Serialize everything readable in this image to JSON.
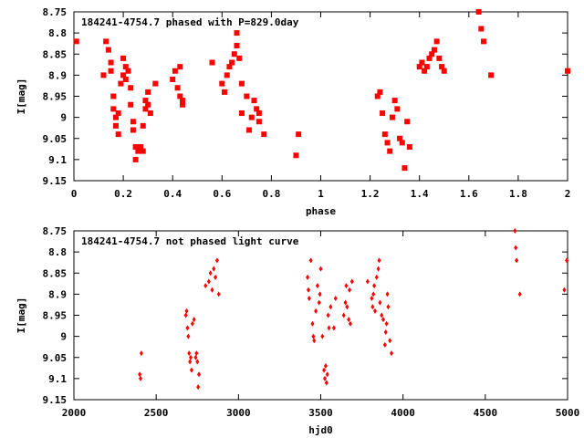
{
  "chart_data": [
    {
      "type": "scatter",
      "title": "184241-4754.7 phased with P=829.0day",
      "xlabel": "phase",
      "ylabel": "I[mag]",
      "xlim": [
        0,
        2
      ],
      "ylim": [
        8.75,
        9.15
      ],
      "y_inverted": true,
      "x_ticks": [
        "0",
        "0.2",
        "0.4",
        "0.6",
        "0.8",
        "1",
        "1.2",
        "1.4",
        "1.6",
        "1.8",
        "2"
      ],
      "y_ticks": [
        "8.75",
        "8.8",
        "8.85",
        "8.9",
        "8.95",
        "9",
        "9.05",
        "9.1",
        "9.15"
      ],
      "grid": false,
      "marker_color": "#ff0000",
      "points": [
        [
          0.01,
          8.82
        ],
        [
          0.12,
          8.9
        ],
        [
          0.13,
          8.82
        ],
        [
          0.14,
          8.84
        ],
        [
          0.15,
          8.87
        ],
        [
          0.15,
          8.89
        ],
        [
          0.16,
          8.95
        ],
        [
          0.16,
          8.98
        ],
        [
          0.17,
          9.0
        ],
        [
          0.17,
          9.02
        ],
        [
          0.18,
          9.04
        ],
        [
          0.18,
          8.99
        ],
        [
          0.19,
          8.92
        ],
        [
          0.2,
          8.9
        ],
        [
          0.2,
          8.86
        ],
        [
          0.21,
          8.88
        ],
        [
          0.21,
          8.91
        ],
        [
          0.22,
          8.89
        ],
        [
          0.23,
          8.93
        ],
        [
          0.23,
          8.97
        ],
        [
          0.24,
          9.01
        ],
        [
          0.24,
          9.03
        ],
        [
          0.25,
          9.07
        ],
        [
          0.25,
          9.1
        ],
        [
          0.26,
          9.08
        ],
        [
          0.27,
          9.07
        ],
        [
          0.28,
          9.08
        ],
        [
          0.28,
          9.02
        ],
        [
          0.29,
          8.98
        ],
        [
          0.29,
          8.96
        ],
        [
          0.3,
          8.94
        ],
        [
          0.3,
          8.97
        ],
        [
          0.31,
          8.99
        ],
        [
          0.33,
          8.92
        ],
        [
          0.4,
          8.91
        ],
        [
          0.41,
          8.89
        ],
        [
          0.42,
          8.93
        ],
        [
          0.43,
          8.95
        ],
        [
          0.43,
          8.88
        ],
        [
          0.44,
          8.97
        ],
        [
          0.44,
          8.96
        ],
        [
          0.56,
          8.87
        ],
        [
          0.6,
          8.92
        ],
        [
          0.61,
          8.94
        ],
        [
          0.62,
          8.9
        ],
        [
          0.63,
          8.88
        ],
        [
          0.64,
          8.87
        ],
        [
          0.65,
          8.85
        ],
        [
          0.66,
          8.83
        ],
        [
          0.66,
          8.8
        ],
        [
          0.67,
          8.86
        ],
        [
          0.68,
          8.92
        ],
        [
          0.68,
          8.99
        ],
        [
          0.7,
          8.95
        ],
        [
          0.71,
          9.03
        ],
        [
          0.72,
          9.0
        ],
        [
          0.73,
          8.96
        ],
        [
          0.74,
          8.98
        ],
        [
          0.75,
          9.01
        ],
        [
          0.75,
          8.99
        ],
        [
          0.77,
          9.04
        ],
        [
          0.9,
          9.09
        ],
        [
          0.91,
          9.04
        ],
        [
          1.23,
          8.95
        ],
        [
          1.24,
          8.94
        ],
        [
          1.25,
          8.99
        ],
        [
          1.26,
          9.04
        ],
        [
          1.27,
          9.06
        ],
        [
          1.28,
          9.08
        ],
        [
          1.29,
          9.0
        ],
        [
          1.3,
          8.96
        ],
        [
          1.31,
          8.98
        ],
        [
          1.32,
          9.05
        ],
        [
          1.33,
          9.06
        ],
        [
          1.34,
          9.12
        ],
        [
          1.35,
          9.01
        ],
        [
          1.36,
          9.07
        ],
        [
          1.4,
          8.88
        ],
        [
          1.41,
          8.87
        ],
        [
          1.42,
          8.89
        ],
        [
          1.43,
          8.88
        ],
        [
          1.44,
          8.86
        ],
        [
          1.45,
          8.85
        ],
        [
          1.46,
          8.84
        ],
        [
          1.47,
          8.82
        ],
        [
          1.48,
          8.86
        ],
        [
          1.49,
          8.88
        ],
        [
          1.5,
          8.89
        ],
        [
          1.64,
          8.75
        ],
        [
          1.65,
          8.79
        ],
        [
          1.66,
          8.82
        ],
        [
          1.69,
          8.9
        ],
        [
          2.0,
          8.89
        ]
      ]
    },
    {
      "type": "scatter",
      "title": "184241-4754.7 not phased light curve",
      "xlabel": "hjd0",
      "ylabel": "I[mag]",
      "xlim": [
        2000,
        5000
      ],
      "ylim": [
        8.75,
        9.15
      ],
      "y_inverted": true,
      "x_ticks": [
        "2000",
        "2500",
        "3000",
        "3500",
        "4000",
        "4500",
        "5000"
      ],
      "y_ticks": [
        "8.75",
        "8.8",
        "8.85",
        "8.9",
        "8.95",
        "9",
        "9.05",
        "9.1",
        "9.15"
      ],
      "grid": false,
      "marker_color": "#ff0000",
      "points": [
        [
          2400,
          9.09
        ],
        [
          2405,
          9.1
        ],
        [
          2410,
          9.04
        ],
        [
          2680,
          8.95
        ],
        [
          2685,
          8.94
        ],
        [
          2690,
          8.98
        ],
        [
          2695,
          9.0
        ],
        [
          2700,
          9.04
        ],
        [
          2705,
          9.06
        ],
        [
          2710,
          9.05
        ],
        [
          2715,
          9.08
        ],
        [
          2720,
          8.97
        ],
        [
          2730,
          8.96
        ],
        [
          2740,
          9.05
        ],
        [
          2745,
          9.04
        ],
        [
          2750,
          9.06
        ],
        [
          2755,
          9.12
        ],
        [
          2760,
          9.09
        ],
        [
          2800,
          8.88
        ],
        [
          2820,
          8.87
        ],
        [
          2830,
          8.85
        ],
        [
          2840,
          8.89
        ],
        [
          2850,
          8.84
        ],
        [
          2860,
          8.86
        ],
        [
          2870,
          8.82
        ],
        [
          2880,
          8.9
        ],
        [
          3420,
          8.86
        ],
        [
          3425,
          8.89
        ],
        [
          3430,
          8.91
        ],
        [
          3440,
          8.82
        ],
        [
          3450,
          8.97
        ],
        [
          3455,
          9.0
        ],
        [
          3460,
          9.01
        ],
        [
          3470,
          8.94
        ],
        [
          3480,
          8.88
        ],
        [
          3490,
          8.92
        ],
        [
          3495,
          8.9
        ],
        [
          3500,
          8.84
        ],
        [
          3510,
          9.0
        ],
        [
          3520,
          9.08
        ],
        [
          3525,
          9.1
        ],
        [
          3530,
          9.07
        ],
        [
          3535,
          9.11
        ],
        [
          3540,
          9.09
        ],
        [
          3545,
          8.95
        ],
        [
          3550,
          8.98
        ],
        [
          3560,
          8.93
        ],
        [
          3580,
          8.98
        ],
        [
          3590,
          8.91
        ],
        [
          3640,
          8.95
        ],
        [
          3650,
          8.92
        ],
        [
          3655,
          8.88
        ],
        [
          3660,
          8.93
        ],
        [
          3670,
          8.96
        ],
        [
          3675,
          8.89
        ],
        [
          3680,
          8.97
        ],
        [
          3690,
          8.87
        ],
        [
          3785,
          8.87
        ],
        [
          3810,
          8.91
        ],
        [
          3815,
          8.93
        ],
        [
          3820,
          8.9
        ],
        [
          3825,
          8.88
        ],
        [
          3830,
          8.94
        ],
        [
          3840,
          8.86
        ],
        [
          3850,
          8.84
        ],
        [
          3855,
          8.82
        ],
        [
          3860,
          8.92
        ],
        [
          3870,
          8.95
        ],
        [
          3880,
          8.96
        ],
        [
          3890,
          9.02
        ],
        [
          3895,
          8.99
        ],
        [
          3900,
          8.97
        ],
        [
          3905,
          8.9
        ],
        [
          3910,
          8.93
        ],
        [
          3920,
          9.01
        ],
        [
          3930,
          9.04
        ],
        [
          4680,
          8.75
        ],
        [
          4685,
          8.79
        ],
        [
          4690,
          8.82
        ],
        [
          4710,
          8.9
        ],
        [
          4980,
          8.89
        ],
        [
          4995,
          8.82
        ]
      ]
    }
  ]
}
